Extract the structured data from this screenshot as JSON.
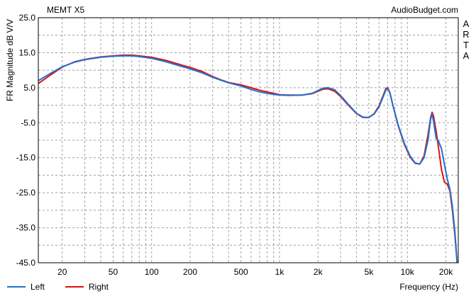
{
  "chart_data": {
    "type": "line",
    "title": "MEMT X5",
    "brand": "AudioBudget.com",
    "side_label": "ARTA",
    "xlabel": "Frequency (Hz)",
    "ylabel": "FR Magnitude dB V/V",
    "x_scale": "log",
    "xlim": [
      13,
      25000
    ],
    "ylim": [
      -45,
      25
    ],
    "y_ticks": [
      {
        "value": 25,
        "label": "25.0"
      },
      {
        "value": 15,
        "label": "15.0"
      },
      {
        "value": 5,
        "label": "5.0"
      },
      {
        "value": -5,
        "label": "-5.0"
      },
      {
        "value": -15,
        "label": "-15.0"
      },
      {
        "value": -25,
        "label": "-25.0"
      },
      {
        "value": -35,
        "label": "-35.0"
      },
      {
        "value": -45,
        "label": "-45.0"
      }
    ],
    "x_ticks": [
      {
        "value": 20,
        "label": "20"
      },
      {
        "value": 50,
        "label": "50"
      },
      {
        "value": 100,
        "label": "100"
      },
      {
        "value": 200,
        "label": "200"
      },
      {
        "value": 500,
        "label": "500"
      },
      {
        "value": 1000,
        "label": "1k"
      },
      {
        "value": 2000,
        "label": "2k"
      },
      {
        "value": 5000,
        "label": "5k"
      },
      {
        "value": 10000,
        "label": "10k"
      },
      {
        "value": 20000,
        "label": "20k"
      }
    ],
    "grid": true,
    "legend_position": "bottom-left",
    "series": [
      {
        "name": "Left",
        "color": "#1e73d2",
        "points": [
          [
            13,
            7.0
          ],
          [
            16,
            9.0
          ],
          [
            20,
            11.0
          ],
          [
            25,
            12.3
          ],
          [
            30,
            13.0
          ],
          [
            40,
            13.7
          ],
          [
            50,
            14.0
          ],
          [
            60,
            14.1
          ],
          [
            70,
            14.1
          ],
          [
            80,
            13.9
          ],
          [
            100,
            13.4
          ],
          [
            130,
            12.4
          ],
          [
            160,
            11.4
          ],
          [
            200,
            10.4
          ],
          [
            250,
            9.2
          ],
          [
            300,
            8.0
          ],
          [
            350,
            7.1
          ],
          [
            400,
            6.4
          ],
          [
            500,
            5.5
          ],
          [
            600,
            4.5
          ],
          [
            700,
            3.8
          ],
          [
            800,
            3.4
          ],
          [
            900,
            3.1
          ],
          [
            1000,
            2.9
          ],
          [
            1200,
            2.8
          ],
          [
            1500,
            2.9
          ],
          [
            1800,
            3.4
          ],
          [
            2000,
            4.2
          ],
          [
            2200,
            4.9
          ],
          [
            2400,
            5.0
          ],
          [
            2700,
            4.4
          ],
          [
            3000,
            2.8
          ],
          [
            3500,
            0.0
          ],
          [
            4000,
            -2.3
          ],
          [
            4500,
            -3.4
          ],
          [
            5000,
            -3.5
          ],
          [
            5500,
            -2.5
          ],
          [
            6000,
            -0.5
          ],
          [
            6500,
            2.6
          ],
          [
            6800,
            4.4
          ],
          [
            7000,
            4.8
          ],
          [
            7300,
            3.5
          ],
          [
            7700,
            0.0
          ],
          [
            8500,
            -5.8
          ],
          [
            9500,
            -11.0
          ],
          [
            10500,
            -14.5
          ],
          [
            11500,
            -16.5
          ],
          [
            12500,
            -16.8
          ],
          [
            13500,
            -15.0
          ],
          [
            14500,
            -10.0
          ],
          [
            15200,
            -4.0
          ],
          [
            15600,
            -2.5
          ],
          [
            16000,
            -4.5
          ],
          [
            16800,
            -9.5
          ],
          [
            17500,
            -10.2
          ],
          [
            18500,
            -12.5
          ],
          [
            19500,
            -17.0
          ],
          [
            20500,
            -21.0
          ],
          [
            21500,
            -24.0
          ],
          [
            22500,
            -29.0
          ],
          [
            23500,
            -36.0
          ],
          [
            24500,
            -45.0
          ]
        ]
      },
      {
        "name": "Right",
        "color": "#e01010",
        "points": [
          [
            13,
            6.2
          ],
          [
            16,
            8.5
          ],
          [
            20,
            10.9
          ],
          [
            25,
            12.4
          ],
          [
            30,
            13.1
          ],
          [
            40,
            13.8
          ],
          [
            50,
            14.1
          ],
          [
            60,
            14.3
          ],
          [
            70,
            14.3
          ],
          [
            80,
            14.1
          ],
          [
            100,
            13.7
          ],
          [
            130,
            12.8
          ],
          [
            160,
            11.8
          ],
          [
            200,
            10.8
          ],
          [
            250,
            9.6
          ],
          [
            300,
            8.2
          ],
          [
            350,
            7.2
          ],
          [
            400,
            6.5
          ],
          [
            500,
            5.8
          ],
          [
            600,
            5.0
          ],
          [
            700,
            4.3
          ],
          [
            800,
            3.8
          ],
          [
            900,
            3.4
          ],
          [
            1000,
            3.0
          ],
          [
            1200,
            2.9
          ],
          [
            1500,
            2.9
          ],
          [
            1800,
            3.3
          ],
          [
            2000,
            4.0
          ],
          [
            2200,
            4.6
          ],
          [
            2400,
            4.7
          ],
          [
            2700,
            4.0
          ],
          [
            3000,
            2.5
          ],
          [
            3500,
            -0.2
          ],
          [
            4000,
            -2.4
          ],
          [
            4500,
            -3.5
          ],
          [
            5000,
            -3.5
          ],
          [
            5500,
            -2.4
          ],
          [
            6000,
            -0.2
          ],
          [
            6500,
            3.0
          ],
          [
            6800,
            4.8
          ],
          [
            7000,
            5.0
          ],
          [
            7300,
            3.6
          ],
          [
            7700,
            0.0
          ],
          [
            8500,
            -6.0
          ],
          [
            9500,
            -11.3
          ],
          [
            10500,
            -14.8
          ],
          [
            11500,
            -16.6
          ],
          [
            12500,
            -16.8
          ],
          [
            13500,
            -14.5
          ],
          [
            14500,
            -8.5
          ],
          [
            15200,
            -3.5
          ],
          [
            15600,
            -2.0
          ],
          [
            16000,
            -3.0
          ],
          [
            16800,
            -7.5
          ],
          [
            17500,
            -12.0
          ],
          [
            18500,
            -18.5
          ],
          [
            19500,
            -22.0
          ],
          [
            20500,
            -22.5
          ],
          [
            21500,
            -24.5
          ],
          [
            22500,
            -30.0
          ],
          [
            23500,
            -37.0
          ],
          [
            24500,
            -45.0
          ]
        ]
      }
    ]
  }
}
